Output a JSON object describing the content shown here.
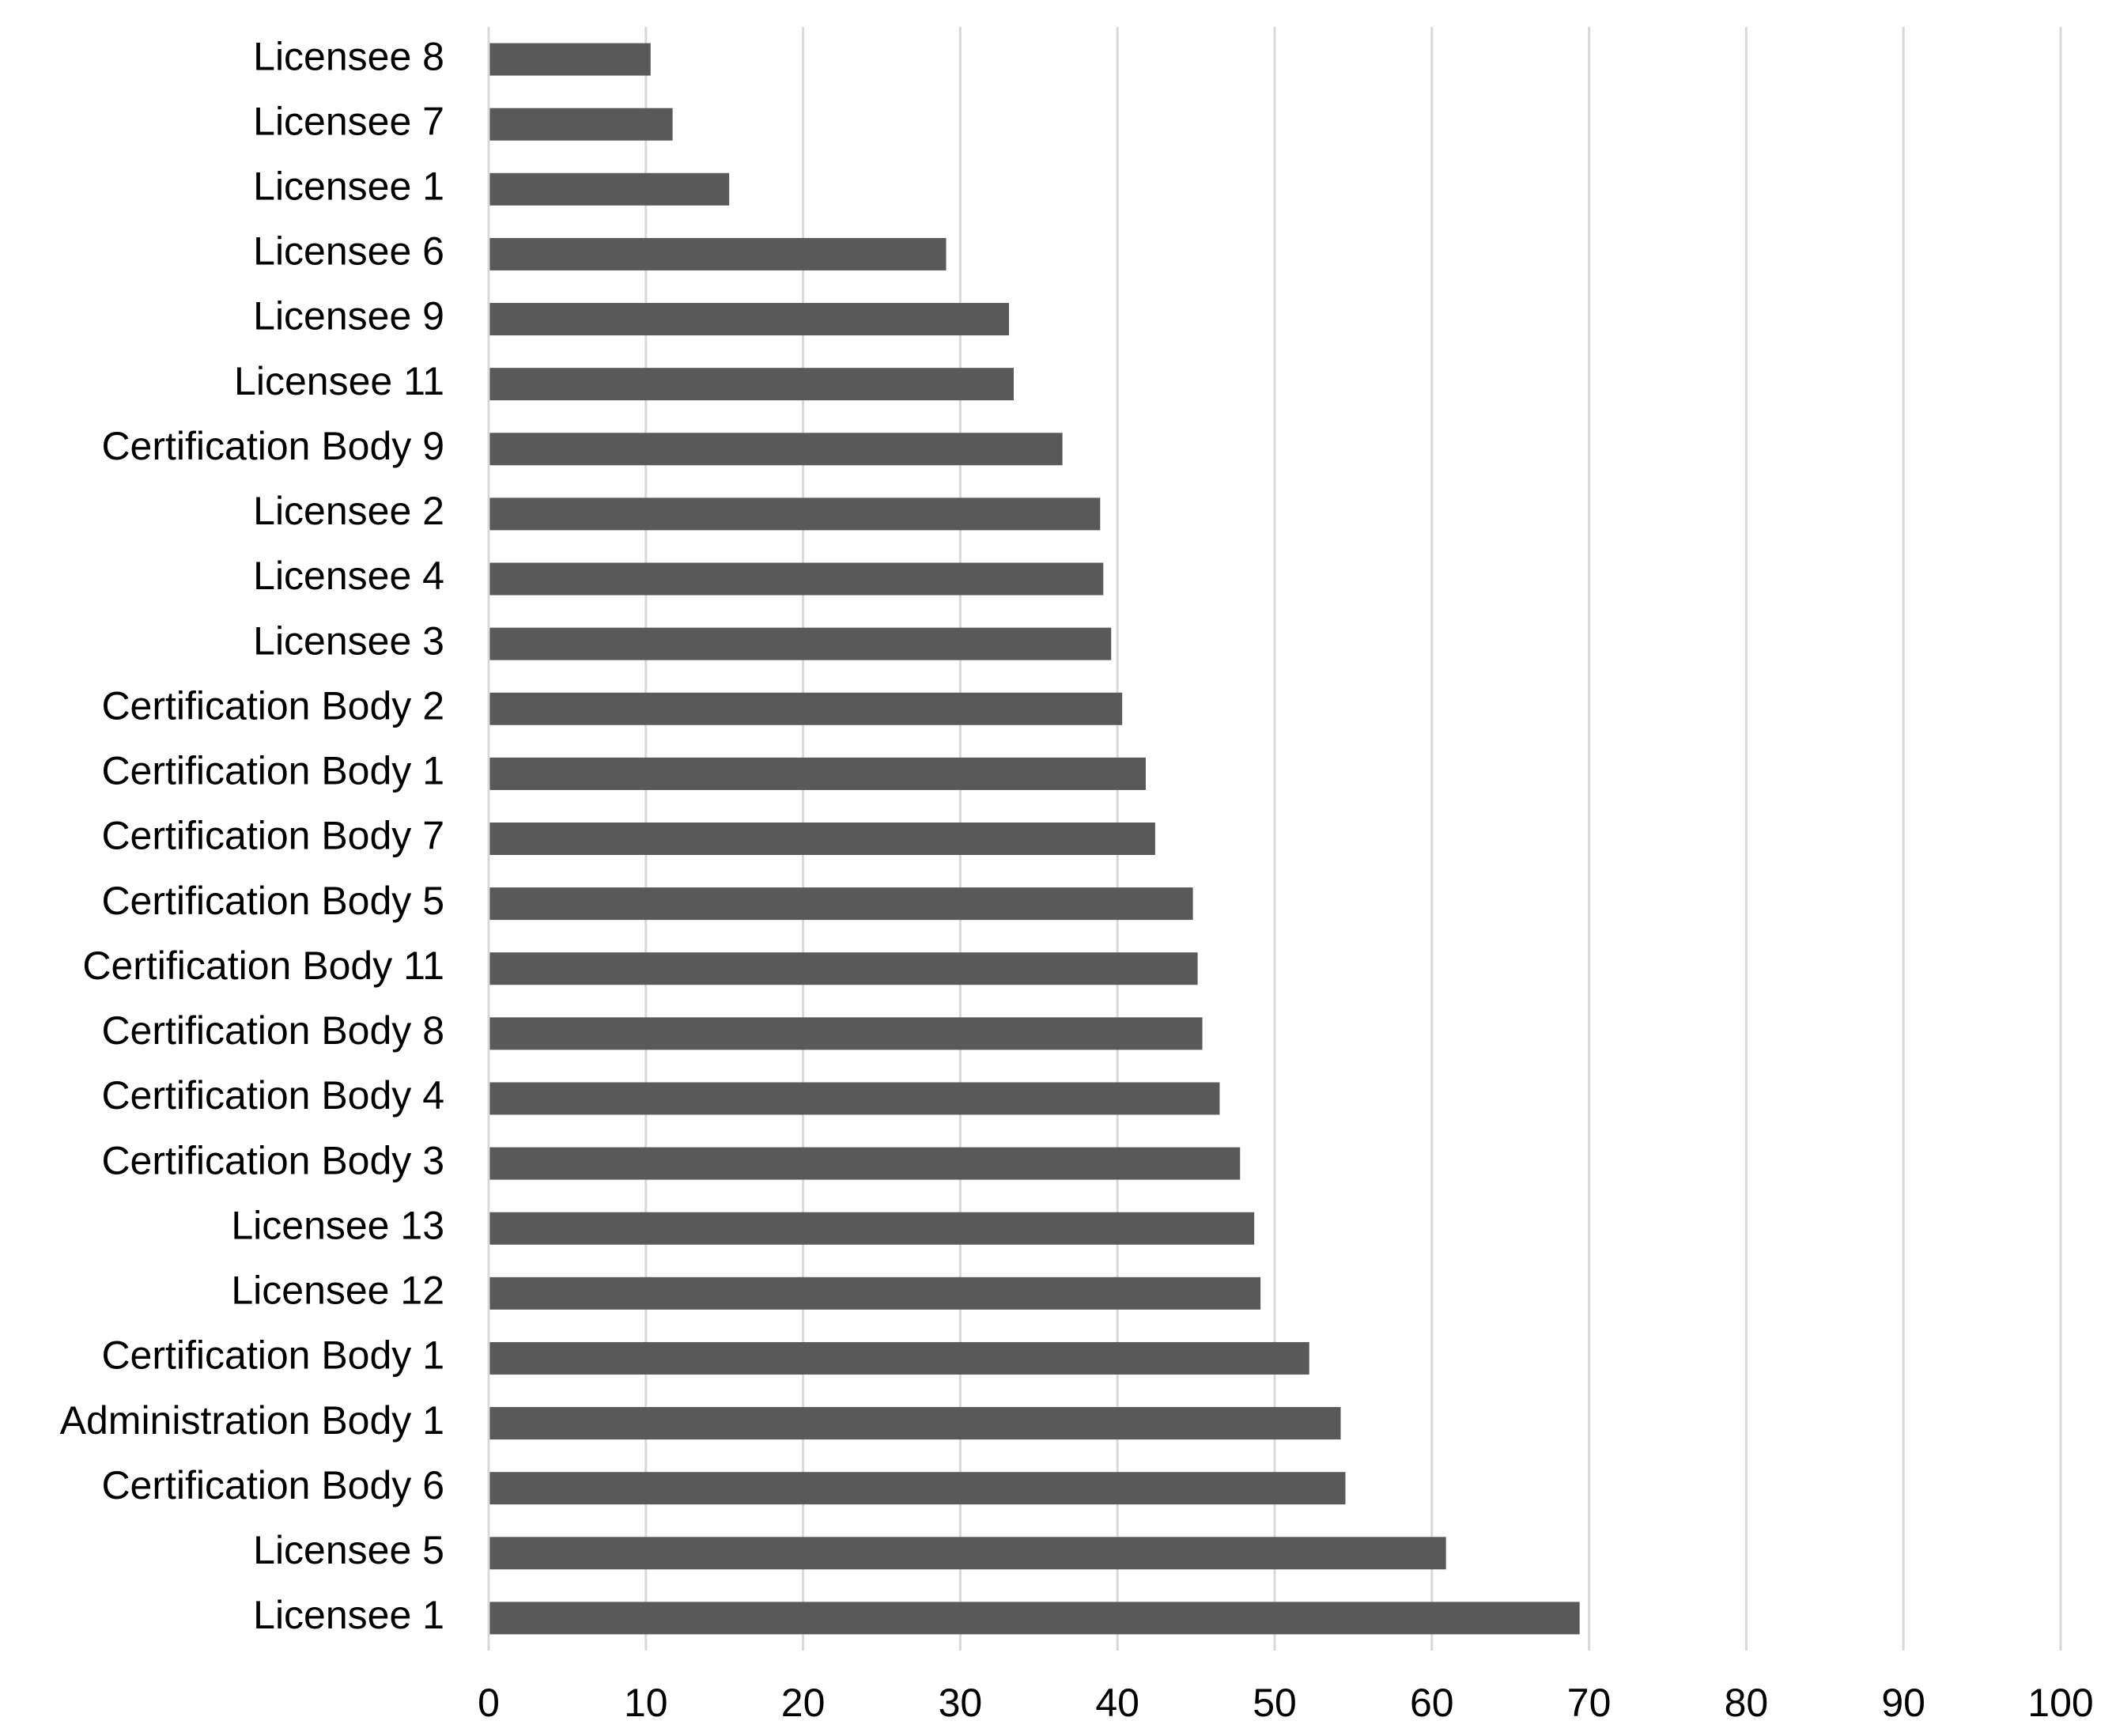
{
  "chart_data": {
    "type": "bar",
    "orientation": "horizontal",
    "categories": [
      "Licensee 8",
      "Licensee 7",
      "Licensee 1",
      "Licensee 6",
      "Licensee 9",
      "Licensee 11",
      "Certification Body 9",
      "Licensee 2",
      "Licensee 4",
      "Licensee 3",
      "Certification Body 2",
      "Certification Body 1",
      "Certification Body 7",
      "Certification Body 5",
      "Certification Body 11",
      "Certification Body 8",
      "Certification Body 4",
      "Certification Body 3",
      "Licensee 13",
      "Licensee 12",
      "Certification Body 1",
      "Administration Body 1",
      "Certification Body 6",
      "Licensee 5",
      "Licensee 1"
    ],
    "values": [
      10.3,
      11.7,
      15.3,
      29.1,
      33.1,
      33.4,
      36.5,
      38.9,
      39.1,
      39.6,
      40.3,
      41.8,
      42.4,
      44.8,
      45.1,
      45.4,
      46.5,
      47.8,
      48.7,
      49.1,
      52.2,
      54.2,
      54.5,
      60.9,
      69.4
    ],
    "color": "#595959",
    "xlim": [
      0,
      100
    ],
    "xticks": [
      0,
      10,
      20,
      30,
      40,
      50,
      60,
      70,
      80,
      90,
      100
    ],
    "grid": true
  }
}
